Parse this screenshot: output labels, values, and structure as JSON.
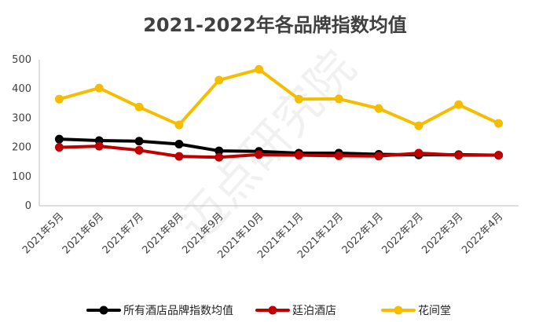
{
  "chart_data": {
    "type": "line",
    "title": "2021-2022年各品牌指数均值",
    "categories": [
      "2021年5月",
      "2021年6月",
      "2021年7月",
      "2021年8月",
      "2021年9月",
      "2021年10月",
      "2021年11月",
      "2021年12月",
      "2022年1月",
      "2022年2月",
      "2022年3月",
      "2022年4月"
    ],
    "series": [
      {
        "name": "所有酒店品牌指数均值",
        "color": "#000000",
        "values": [
          228,
          223,
          221,
          211,
          188,
          186,
          180,
          180,
          176,
          174,
          175,
          173
        ]
      },
      {
        "name": "廷泊酒店",
        "color": "#c00000",
        "values": [
          200,
          204,
          190,
          169,
          166,
          175,
          173,
          171,
          170,
          180,
          173,
          173
        ]
      },
      {
        "name": "花间堂",
        "color": "#f5bd00",
        "values": [
          365,
          403,
          338,
          277,
          430,
          467,
          365,
          366,
          333,
          274,
          346,
          282
        ]
      }
    ],
    "ylim": [
      0,
      500
    ],
    "yticks": [
      0,
      100,
      200,
      300,
      400,
      500
    ],
    "grid": false,
    "legend_position": "bottom",
    "watermark": "迈点研究院"
  }
}
